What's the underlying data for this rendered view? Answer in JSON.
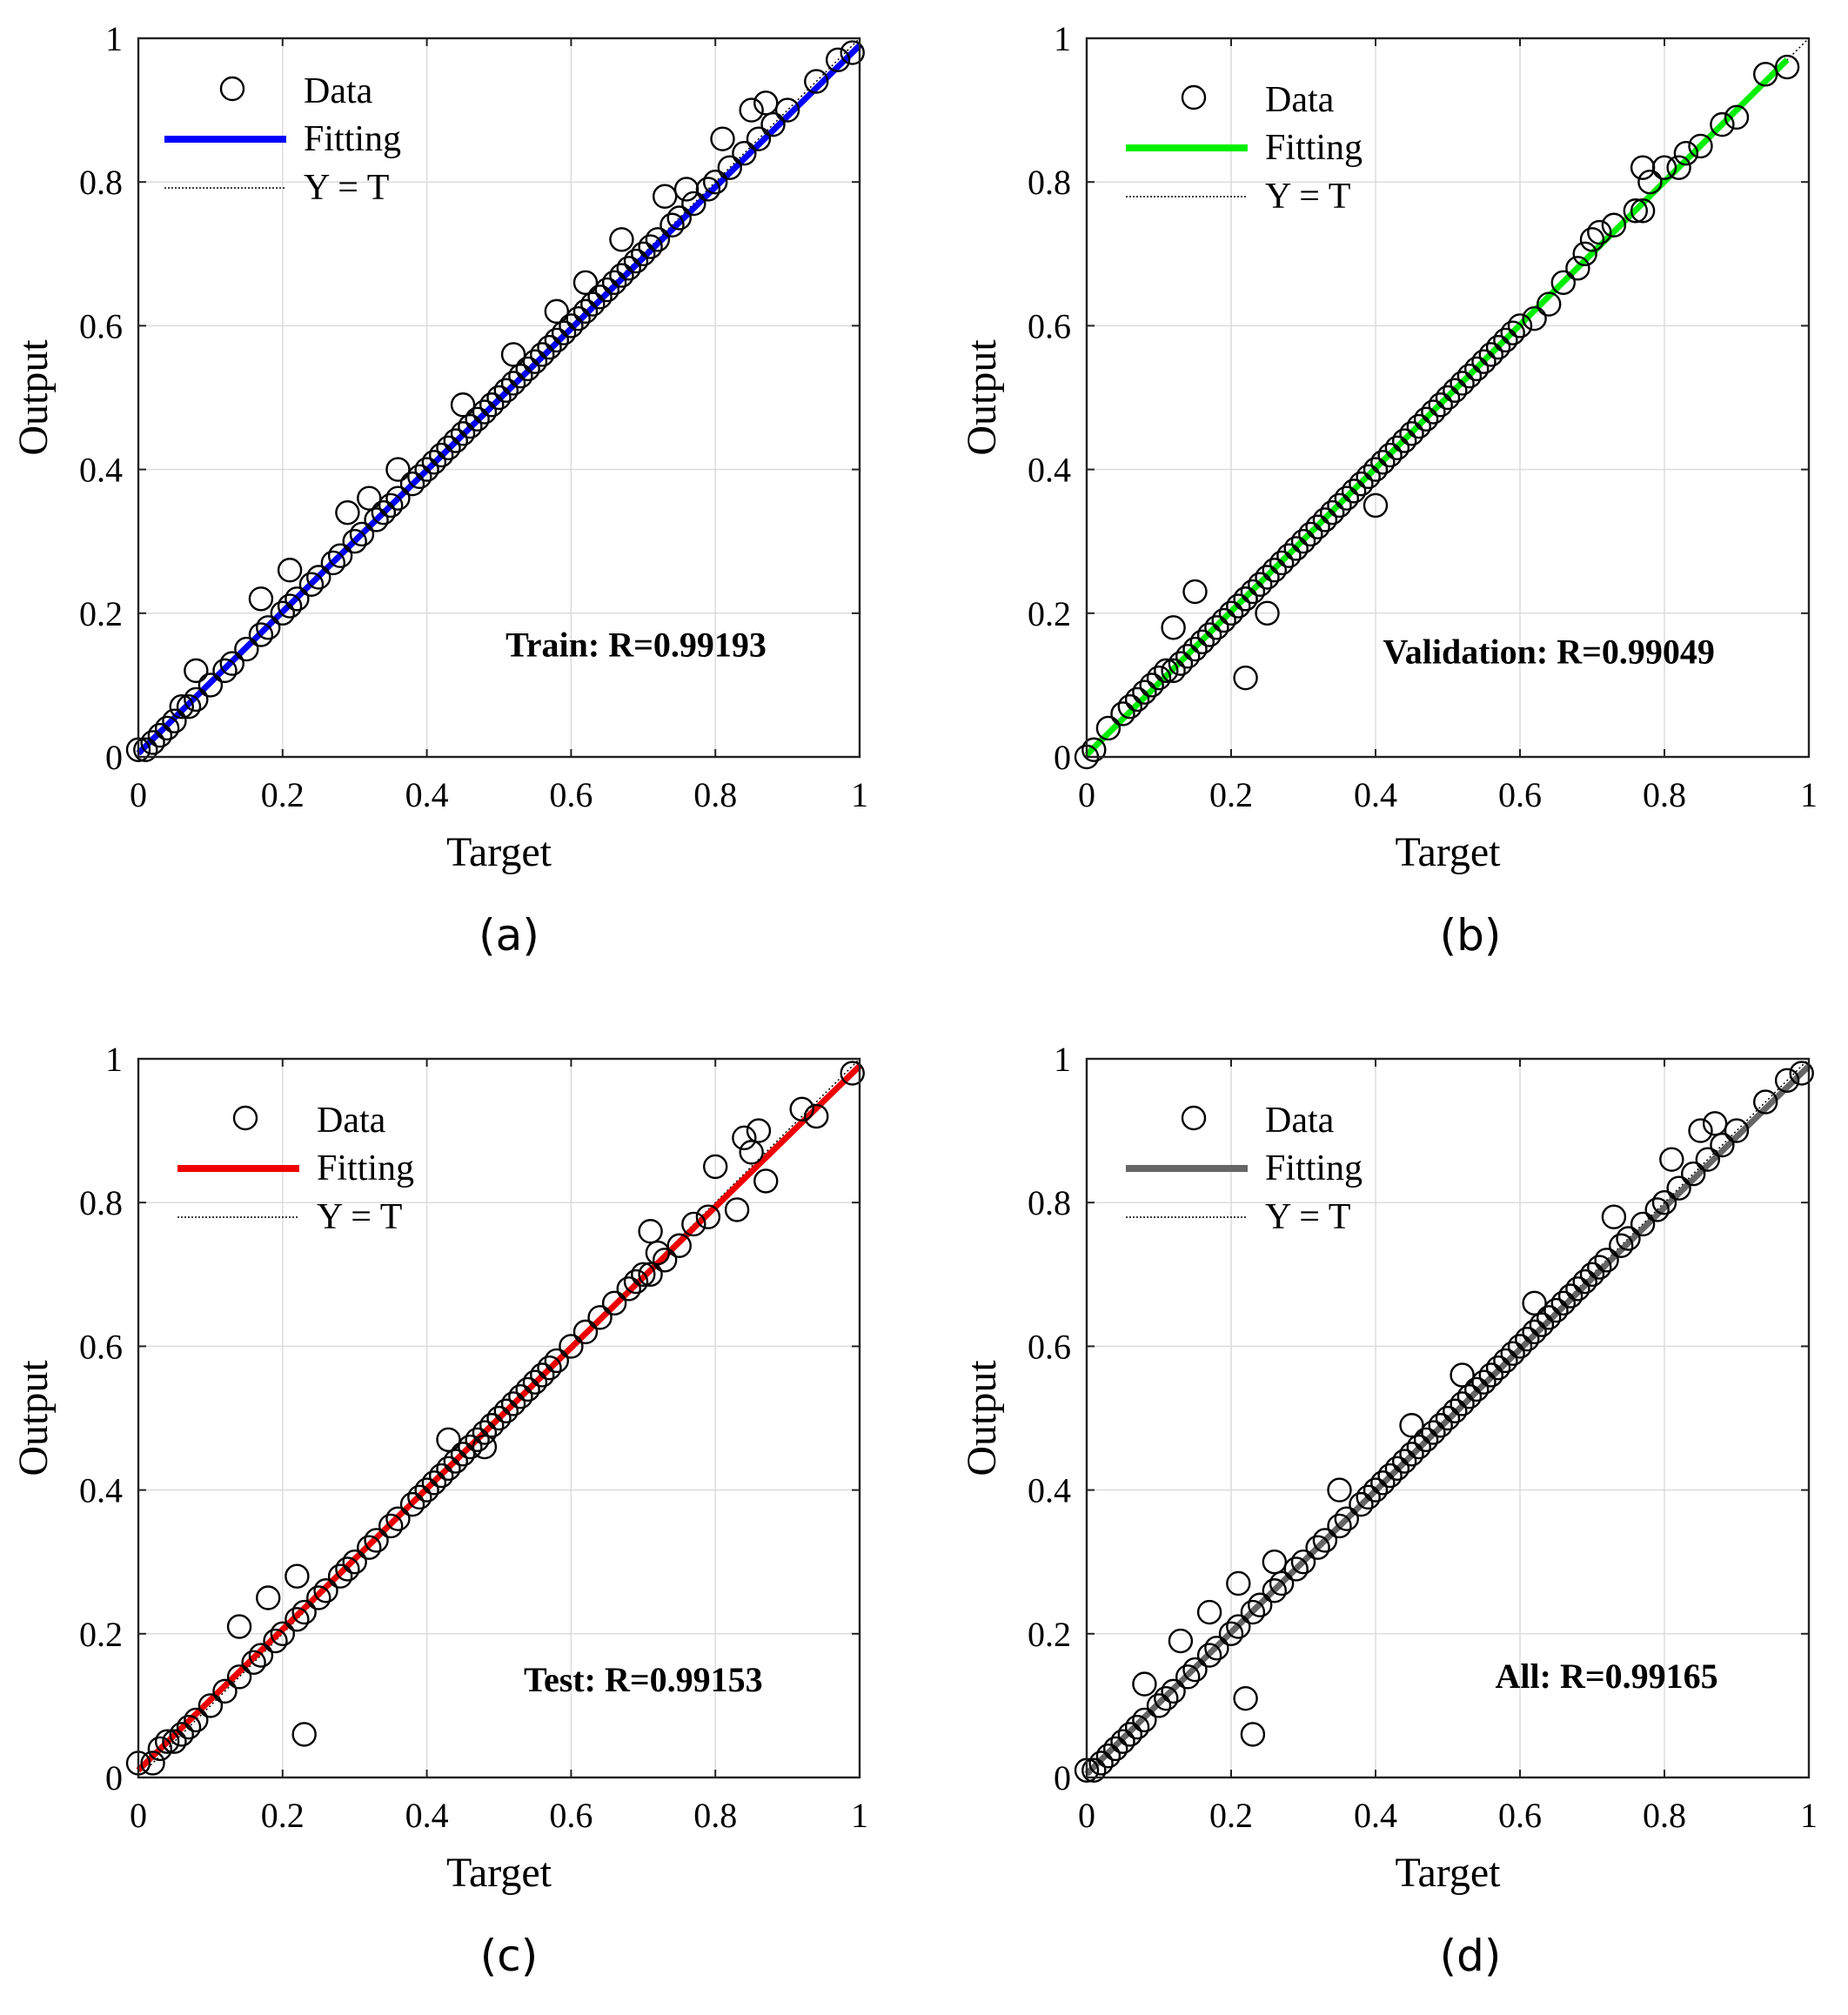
{
  "figure": {
    "panels": [
      {
        "caption": "(a)",
        "legend": {
          "data": "Data",
          "fitting": "Fitting",
          "yt": "Y = T"
        },
        "annotation": "Train: R=0.99193"
      },
      {
        "caption": "(b)",
        "legend": {
          "data": "Data",
          "fitting": "Fitting",
          "yt": "Y = T"
        },
        "annotation": "Validation: R=0.99049"
      },
      {
        "caption": "(c)",
        "legend": {
          "data": "Data",
          "fitting": "Fitting",
          "yt": "Y = T"
        },
        "annotation": "Test: R=0.99153"
      },
      {
        "caption": "(d)",
        "legend": {
          "data": "Data",
          "fitting": "Fitting",
          "yt": "Y = T"
        },
        "annotation": "All: R=0.99165"
      }
    ]
  },
  "chart_data": [
    {
      "type": "scatter",
      "title": "",
      "xlabel": "Target",
      "ylabel": "Output",
      "xlim": [
        0,
        1
      ],
      "ylim": [
        0,
        1
      ],
      "grid": true,
      "x_ticks": [
        "0",
        "0.2",
        "0.4",
        "0.6",
        "0.8",
        "1"
      ],
      "y_ticks": [
        "0",
        "0.2",
        "0.4",
        "0.6",
        "0.8",
        "1"
      ],
      "legend_position": "top-left",
      "fit_color": "#0000ff",
      "fit_line": {
        "x": [
          0.0,
          1.0
        ],
        "y": [
          0.005,
          0.99
        ]
      },
      "identity_line": {
        "x": [
          0,
          1
        ],
        "y": [
          0,
          1
        ]
      },
      "series": [
        {
          "name": "Data",
          "x": [
            0.0,
            0.01,
            0.02,
            0.03,
            0.04,
            0.05,
            0.06,
            0.07,
            0.08,
            0.1,
            0.12,
            0.13,
            0.15,
            0.17,
            0.18,
            0.2,
            0.21,
            0.22,
            0.24,
            0.25,
            0.27,
            0.28,
            0.3,
            0.31,
            0.33,
            0.34,
            0.35,
            0.36,
            0.38,
            0.39,
            0.4,
            0.41,
            0.42,
            0.43,
            0.44,
            0.45,
            0.46,
            0.47,
            0.48,
            0.49,
            0.5,
            0.51,
            0.52,
            0.53,
            0.54,
            0.55,
            0.56,
            0.57,
            0.58,
            0.59,
            0.6,
            0.61,
            0.62,
            0.63,
            0.64,
            0.65,
            0.66,
            0.67,
            0.68,
            0.69,
            0.7,
            0.71,
            0.72,
            0.74,
            0.75,
            0.77,
            0.79,
            0.8,
            0.82,
            0.84,
            0.86,
            0.88,
            0.9,
            0.94,
            0.97,
            0.99,
            0.08,
            0.17,
            0.21,
            0.29,
            0.32,
            0.36,
            0.45,
            0.52,
            0.58,
            0.62,
            0.67,
            0.73,
            0.76,
            0.81,
            0.85,
            0.87
          ],
          "y": [
            0.01,
            0.01,
            0.02,
            0.03,
            0.04,
            0.05,
            0.07,
            0.07,
            0.08,
            0.1,
            0.12,
            0.13,
            0.15,
            0.17,
            0.18,
            0.2,
            0.21,
            0.22,
            0.24,
            0.25,
            0.27,
            0.28,
            0.3,
            0.31,
            0.33,
            0.34,
            0.35,
            0.36,
            0.38,
            0.39,
            0.4,
            0.41,
            0.42,
            0.43,
            0.44,
            0.45,
            0.46,
            0.47,
            0.48,
            0.49,
            0.5,
            0.51,
            0.52,
            0.53,
            0.54,
            0.55,
            0.56,
            0.57,
            0.58,
            0.59,
            0.6,
            0.61,
            0.62,
            0.63,
            0.64,
            0.65,
            0.66,
            0.67,
            0.68,
            0.69,
            0.7,
            0.71,
            0.72,
            0.74,
            0.75,
            0.77,
            0.79,
            0.8,
            0.82,
            0.84,
            0.86,
            0.88,
            0.9,
            0.94,
            0.97,
            0.98,
            0.12,
            0.22,
            0.26,
            0.34,
            0.36,
            0.4,
            0.49,
            0.56,
            0.62,
            0.66,
            0.72,
            0.78,
            0.79,
            0.86,
            0.9,
            0.91
          ]
        }
      ]
    },
    {
      "type": "scatter",
      "title": "",
      "xlabel": "Target",
      "ylabel": "Output",
      "xlim": [
        0,
        1
      ],
      "ylim": [
        0,
        1
      ],
      "grid": true,
      "x_ticks": [
        "0",
        "0.2",
        "0.4",
        "0.6",
        "0.8",
        "1"
      ],
      "y_ticks": [
        "0",
        "0.2",
        "0.4",
        "0.6",
        "0.8",
        "1"
      ],
      "legend_position": "top-left",
      "fit_color": "#00ee00",
      "fit_line": {
        "x": [
          0.0,
          0.97
        ],
        "y": [
          0.003,
          0.97
        ]
      },
      "identity_line": {
        "x": [
          0,
          1
        ],
        "y": [
          0,
          1
        ]
      },
      "series": [
        {
          "name": "Data",
          "x": [
            0.0,
            0.01,
            0.03,
            0.05,
            0.06,
            0.07,
            0.08,
            0.09,
            0.1,
            0.11,
            0.12,
            0.13,
            0.14,
            0.15,
            0.16,
            0.17,
            0.18,
            0.19,
            0.2,
            0.21,
            0.22,
            0.22,
            0.23,
            0.24,
            0.25,
            0.26,
            0.27,
            0.28,
            0.29,
            0.3,
            0.31,
            0.32,
            0.33,
            0.34,
            0.35,
            0.36,
            0.37,
            0.38,
            0.39,
            0.4,
            0.41,
            0.42,
            0.43,
            0.44,
            0.45,
            0.46,
            0.47,
            0.48,
            0.49,
            0.5,
            0.51,
            0.52,
            0.53,
            0.54,
            0.55,
            0.56,
            0.57,
            0.58,
            0.59,
            0.6,
            0.62,
            0.64,
            0.66,
            0.68,
            0.69,
            0.7,
            0.71,
            0.73,
            0.76,
            0.77,
            0.78,
            0.8,
            0.82,
            0.83,
            0.85,
            0.88,
            0.9,
            0.94,
            0.97,
            0.15,
            0.12,
            0.22,
            0.25,
            0.4,
            0.77
          ],
          "y": [
            0.0,
            0.01,
            0.04,
            0.06,
            0.07,
            0.08,
            0.09,
            0.1,
            0.11,
            0.12,
            0.12,
            0.13,
            0.14,
            0.15,
            0.16,
            0.17,
            0.18,
            0.19,
            0.2,
            0.21,
            0.22,
            0.22,
            0.23,
            0.24,
            0.25,
            0.26,
            0.27,
            0.28,
            0.29,
            0.3,
            0.31,
            0.32,
            0.33,
            0.34,
            0.35,
            0.36,
            0.37,
            0.38,
            0.39,
            0.4,
            0.41,
            0.42,
            0.43,
            0.44,
            0.45,
            0.46,
            0.47,
            0.48,
            0.49,
            0.5,
            0.51,
            0.52,
            0.53,
            0.54,
            0.55,
            0.56,
            0.57,
            0.58,
            0.59,
            0.6,
            0.61,
            0.63,
            0.66,
            0.68,
            0.7,
            0.72,
            0.73,
            0.74,
            0.76,
            0.76,
            0.8,
            0.82,
            0.82,
            0.84,
            0.85,
            0.88,
            0.89,
            0.95,
            0.96,
            0.23,
            0.18,
            0.11,
            0.2,
            0.35,
            0.82
          ]
        }
      ]
    },
    {
      "type": "scatter",
      "title": "",
      "xlabel": "Target",
      "ylabel": "Output",
      "xlim": [
        0,
        1
      ],
      "ylim": [
        0,
        1
      ],
      "grid": true,
      "x_ticks": [
        "0",
        "0.2",
        "0.4",
        "0.6",
        "0.8",
        "1"
      ],
      "y_ticks": [
        "0",
        "0.2",
        "0.4",
        "0.6",
        "0.8",
        "1"
      ],
      "legend_position": "top-left",
      "fit_color": "#ee0000",
      "fit_line": {
        "x": [
          0.0,
          1.0
        ],
        "y": [
          0.01,
          0.99
        ]
      },
      "identity_line": {
        "x": [
          0,
          1
        ],
        "y": [
          0,
          1
        ]
      },
      "series": [
        {
          "name": "Data",
          "x": [
            0.0,
            0.02,
            0.03,
            0.04,
            0.05,
            0.06,
            0.07,
            0.08,
            0.1,
            0.12,
            0.14,
            0.16,
            0.17,
            0.19,
            0.2,
            0.22,
            0.23,
            0.25,
            0.26,
            0.28,
            0.29,
            0.3,
            0.32,
            0.33,
            0.35,
            0.36,
            0.38,
            0.39,
            0.4,
            0.41,
            0.42,
            0.43,
            0.44,
            0.45,
            0.46,
            0.47,
            0.48,
            0.49,
            0.5,
            0.51,
            0.52,
            0.53,
            0.54,
            0.55,
            0.56,
            0.57,
            0.58,
            0.6,
            0.62,
            0.64,
            0.66,
            0.68,
            0.69,
            0.7,
            0.71,
            0.72,
            0.73,
            0.75,
            0.77,
            0.79,
            0.8,
            0.83,
            0.84,
            0.85,
            0.86,
            0.87,
            0.92,
            0.94,
            0.99,
            0.14,
            0.18,
            0.22,
            0.23,
            0.43,
            0.48,
            0.71
          ],
          "y": [
            0.02,
            0.02,
            0.04,
            0.05,
            0.05,
            0.06,
            0.07,
            0.08,
            0.1,
            0.12,
            0.14,
            0.16,
            0.17,
            0.19,
            0.2,
            0.22,
            0.23,
            0.25,
            0.26,
            0.28,
            0.29,
            0.3,
            0.32,
            0.33,
            0.35,
            0.36,
            0.38,
            0.39,
            0.4,
            0.41,
            0.42,
            0.43,
            0.44,
            0.45,
            0.46,
            0.47,
            0.48,
            0.49,
            0.5,
            0.51,
            0.52,
            0.53,
            0.54,
            0.55,
            0.56,
            0.57,
            0.58,
            0.6,
            0.62,
            0.64,
            0.66,
            0.68,
            0.69,
            0.7,
            0.7,
            0.73,
            0.72,
            0.74,
            0.77,
            0.78,
            0.85,
            0.79,
            0.89,
            0.87,
            0.9,
            0.83,
            0.93,
            0.92,
            0.98,
            0.21,
            0.25,
            0.28,
            0.06,
            0.47,
            0.46,
            0.76
          ]
        }
      ]
    },
    {
      "type": "scatter",
      "title": "",
      "xlabel": "Target",
      "ylabel": "Output",
      "xlim": [
        0,
        1
      ],
      "ylim": [
        0,
        1
      ],
      "grid": true,
      "x_ticks": [
        "0",
        "0.2",
        "0.4",
        "0.6",
        "0.8",
        "1"
      ],
      "y_ticks": [
        "0",
        "0.2",
        "0.4",
        "0.6",
        "0.8",
        "1"
      ],
      "legend_position": "top-left",
      "fit_color": "#666666",
      "fit_line": {
        "x": [
          0.0,
          1.0
        ],
        "y": [
          0.005,
          0.99
        ]
      },
      "identity_line": {
        "x": [
          0,
          1
        ],
        "y": [
          0,
          1
        ]
      },
      "series": [
        {
          "name": "Data",
          "x": [
            0.0,
            0.01,
            0.02,
            0.03,
            0.04,
            0.05,
            0.06,
            0.07,
            0.08,
            0.1,
            0.11,
            0.12,
            0.14,
            0.15,
            0.17,
            0.18,
            0.2,
            0.21,
            0.23,
            0.24,
            0.26,
            0.27,
            0.29,
            0.3,
            0.32,
            0.33,
            0.35,
            0.36,
            0.38,
            0.39,
            0.4,
            0.41,
            0.42,
            0.43,
            0.44,
            0.45,
            0.46,
            0.47,
            0.48,
            0.49,
            0.5,
            0.51,
            0.52,
            0.53,
            0.54,
            0.55,
            0.56,
            0.57,
            0.58,
            0.59,
            0.6,
            0.61,
            0.62,
            0.63,
            0.64,
            0.65,
            0.66,
            0.67,
            0.68,
            0.69,
            0.7,
            0.71,
            0.72,
            0.74,
            0.75,
            0.77,
            0.79,
            0.8,
            0.82,
            0.84,
            0.86,
            0.88,
            0.9,
            0.94,
            0.97,
            0.99,
            0.08,
            0.13,
            0.17,
            0.21,
            0.22,
            0.23,
            0.26,
            0.35,
            0.45,
            0.52,
            0.62,
            0.73,
            0.81,
            0.85,
            0.87
          ],
          "y": [
            0.01,
            0.01,
            0.02,
            0.03,
            0.04,
            0.05,
            0.06,
            0.07,
            0.08,
            0.1,
            0.11,
            0.12,
            0.14,
            0.15,
            0.17,
            0.18,
            0.2,
            0.21,
            0.23,
            0.24,
            0.26,
            0.27,
            0.29,
            0.3,
            0.32,
            0.33,
            0.35,
            0.36,
            0.38,
            0.39,
            0.4,
            0.41,
            0.42,
            0.43,
            0.44,
            0.45,
            0.46,
            0.47,
            0.48,
            0.49,
            0.5,
            0.51,
            0.52,
            0.53,
            0.54,
            0.55,
            0.56,
            0.57,
            0.58,
            0.59,
            0.6,
            0.61,
            0.62,
            0.63,
            0.64,
            0.65,
            0.66,
            0.67,
            0.68,
            0.69,
            0.7,
            0.71,
            0.72,
            0.74,
            0.75,
            0.77,
            0.79,
            0.8,
            0.82,
            0.84,
            0.86,
            0.88,
            0.9,
            0.94,
            0.97,
            0.98,
            0.13,
            0.19,
            0.23,
            0.27,
            0.11,
            0.06,
            0.3,
            0.4,
            0.49,
            0.56,
            0.66,
            0.78,
            0.86,
            0.9,
            0.91
          ]
        }
      ]
    }
  ]
}
